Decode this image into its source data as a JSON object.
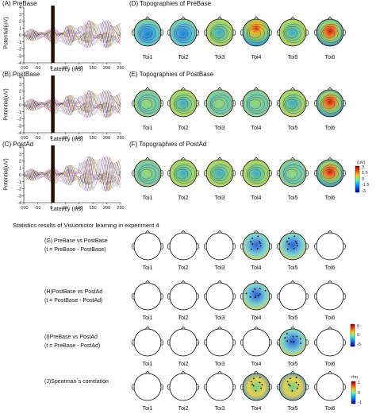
{
  "figure": {
    "panel_labels": {
      "a": "(A) PreBase",
      "b": "(B) PostBase",
      "c": "(C) PostAd",
      "d": "(D) Topographies of PreBase",
      "e": "(E) Topographies of PostBase",
      "f": "(F) Topographies of PostAd"
    },
    "erp": {
      "ylabel": "Potential(uV)",
      "xlabel": "Latency (ms)",
      "yticks": [
        "4",
        "3",
        "2",
        "1",
        "0",
        "-1",
        "-2",
        "-3",
        "-4"
      ],
      "xticks": [
        "-100",
        "-50",
        "0",
        "50",
        "100",
        "150",
        "200",
        "250"
      ]
    },
    "toi_labels": [
      "Toi1",
      "Toi2",
      "Toi3",
      "Toi4",
      "Toi5",
      "Toi6"
    ],
    "colorbar_topo": {
      "unit": "(uV)",
      "ticks": [
        "3",
        "1.5",
        "0",
        "-1.5",
        "-3"
      ]
    },
    "stats_title": "Statistics results of Visuomotor learning in experiment 4",
    "stat_rows": [
      {
        "line1": "(G) PreBase vs PostBase",
        "line2": "(t = PreBase - PostBase)"
      },
      {
        "line1": "(H)PostBase vs PostAd",
        "line2": "(t = PostBase - PostAd)"
      },
      {
        "line1": "(I)PreBase vs PostAd",
        "line2": "(t = PreBase - PostAd)"
      },
      {
        "line1": "(J)Spearman`s correlation",
        "line2": ""
      }
    ],
    "colorbar_t": {
      "ticks": [
        "5",
        "0",
        "-5"
      ]
    },
    "colorbar_rho": {
      "label": "rho",
      "ticks": [
        "1",
        "0",
        "-1"
      ]
    }
  }
}
